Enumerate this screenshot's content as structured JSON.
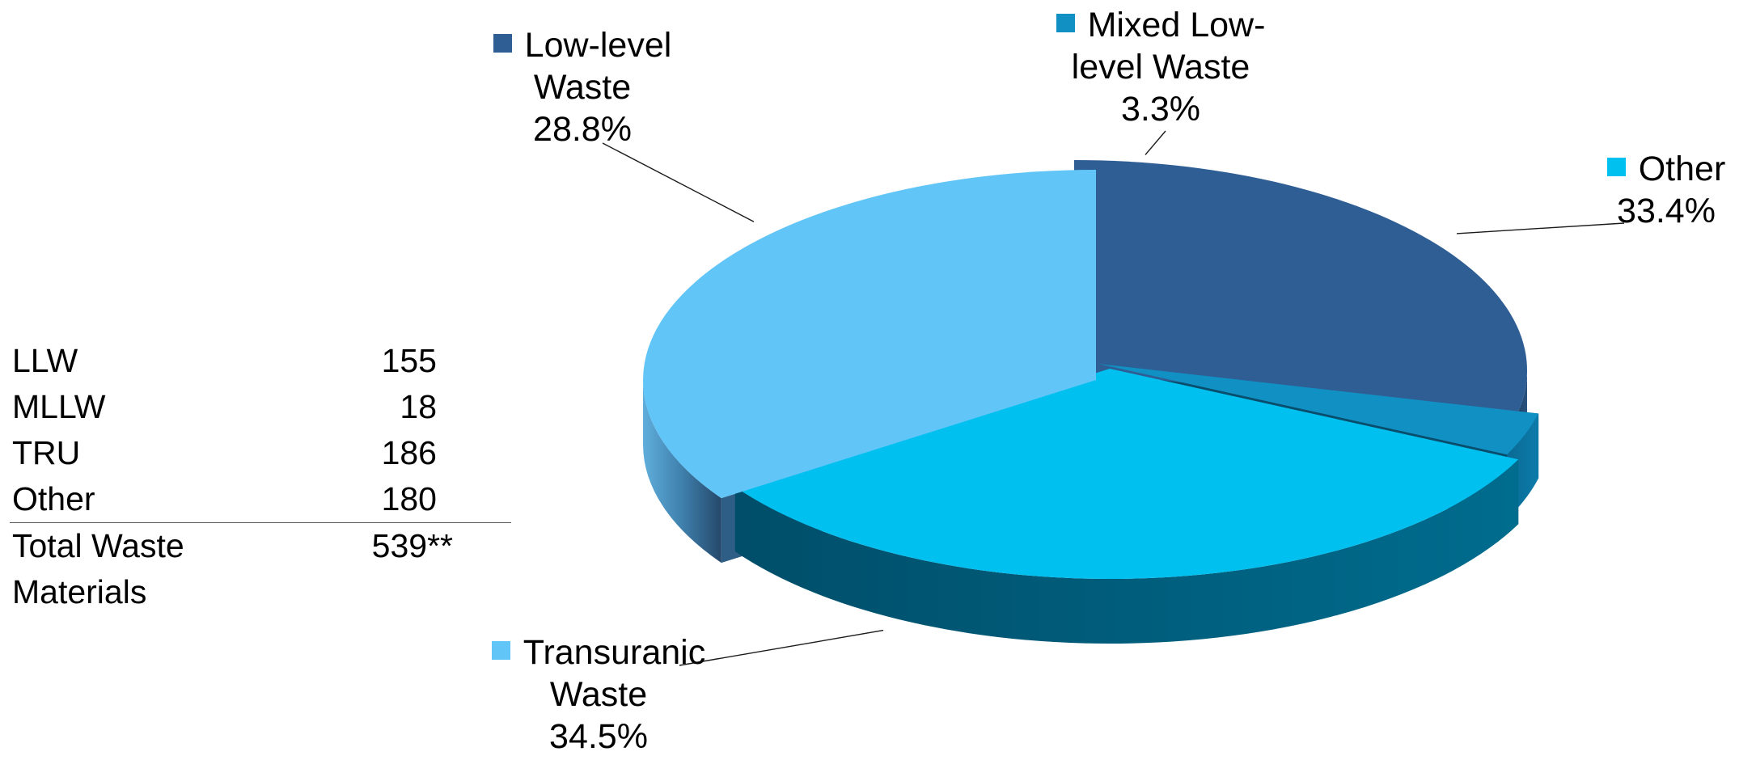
{
  "chart_data": {
    "type": "pie",
    "title": "",
    "slices": [
      {
        "name": "Low-level Waste",
        "name_lines": [
          "Low-level",
          "Waste"
        ],
        "pct_text": "28.8%",
        "value": 28.8,
        "color": "#2E5E94",
        "side_color": "#1F3F63",
        "inner_color": "#14283F"
      },
      {
        "name": "Mixed Low-level Waste",
        "name_lines": [
          "Mixed Low-",
          "level Waste"
        ],
        "pct_text": "3.3%",
        "value": 3.3,
        "color": "#1190C4",
        "side_color": "#0B6A93",
        "inner_color": "#084E6C"
      },
      {
        "name": "Other",
        "name_lines": [
          "Other"
        ],
        "pct_text": "33.4%",
        "value": 33.4,
        "color": "#00C0F0",
        "side_color": "#005F7E",
        "inner_color": "#00465E"
      },
      {
        "name": "Transuranic Waste",
        "name_lines": [
          "Transuranic",
          "Waste"
        ],
        "pct_text": "34.5%",
        "value": 34.5,
        "color": "#62C5F7",
        "side_color": "#3E7FAE",
        "inner_color": "#2E5E85"
      }
    ]
  },
  "table": {
    "rows": [
      {
        "name": "LLW",
        "value": "155"
      },
      {
        "name": "MLLW",
        "value": "18"
      },
      {
        "name": "TRU",
        "value": "186"
      },
      {
        "name": "Other",
        "value": "180"
      }
    ],
    "total": {
      "name": "Total Waste Materials",
      "value": "539**"
    }
  }
}
